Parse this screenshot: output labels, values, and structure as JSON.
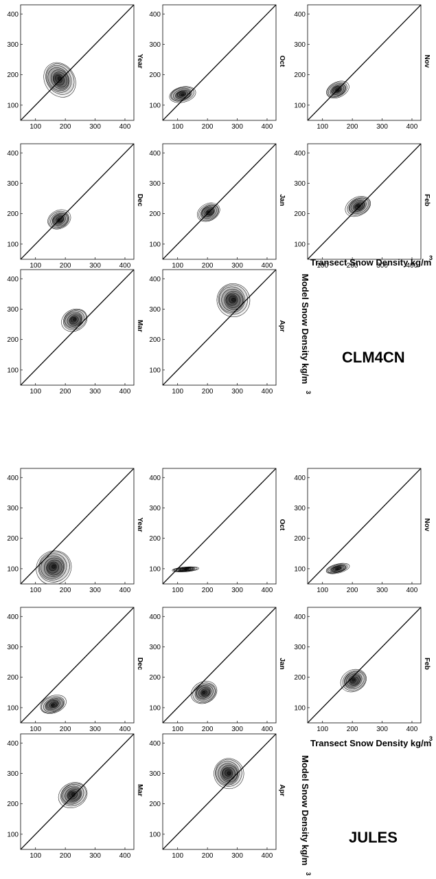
{
  "figure": {
    "x_axis_label": "Transect Snow Density kg/m",
    "x_axis_sup": "3",
    "y_axis_label": "Model Snow Density kg/m",
    "y_axis_sup": "3"
  },
  "chart_data": [
    {
      "type": "contour",
      "model": "CLM4CN",
      "xlabel": "Transect Snow Density kg/m3",
      "ylabel": "Model Snow Density kg/m3",
      "xlim": [
        50,
        430
      ],
      "ylim": [
        50,
        430
      ],
      "xticks": [
        100,
        200,
        300,
        400
      ],
      "yticks": [
        100,
        200,
        300,
        400
      ],
      "reference_line": "1:1",
      "panels": [
        {
          "label": "Year",
          "center": [
            180,
            185
          ],
          "spread": [
            50,
            60
          ],
          "corr": 0.75
        },
        {
          "label": "Oct",
          "center": [
            115,
            135
          ],
          "spread": [
            45,
            25
          ],
          "corr": 0.3
        },
        {
          "label": "Nov",
          "center": [
            150,
            150
          ],
          "spread": [
            40,
            25
          ],
          "corr": 0.55
        },
        {
          "label": "Dec",
          "center": [
            180,
            180
          ],
          "spread": [
            40,
            30
          ],
          "corr": 0.55
        },
        {
          "label": "Jan",
          "center": [
            205,
            205
          ],
          "spread": [
            40,
            28
          ],
          "corr": 0.6
        },
        {
          "label": "Feb",
          "center": [
            220,
            225
          ],
          "spread": [
            45,
            30
          ],
          "corr": 0.6
        },
        {
          "label": "Mar",
          "center": [
            230,
            265
          ],
          "spread": [
            45,
            35
          ],
          "corr": 0.6
        },
        {
          "label": "Apr",
          "center": [
            285,
            330
          ],
          "spread": [
            55,
            55
          ],
          "corr": 0.6
        }
      ]
    },
    {
      "type": "contour",
      "model": "JULES",
      "xlabel": "Transect Snow Density kg/m3",
      "ylabel": "Model Snow Density kg/m3",
      "xlim": [
        50,
        430
      ],
      "ylim": [
        50,
        430
      ],
      "xticks": [
        100,
        200,
        300,
        400
      ],
      "yticks": [
        100,
        200,
        300,
        400
      ],
      "reference_line": "1:1",
      "panels": [
        {
          "label": "Year",
          "center": [
            160,
            105
          ],
          "spread": [
            60,
            55
          ],
          "corr": 0.7
        },
        {
          "label": "Oct",
          "center": [
            125,
            98
          ],
          "spread": [
            45,
            8
          ],
          "corr": 0.1
        },
        {
          "label": "Nov",
          "center": [
            150,
            100
          ],
          "spread": [
            40,
            15
          ],
          "corr": 0.3
        },
        {
          "label": "Dec",
          "center": [
            160,
            110
          ],
          "spread": [
            45,
            28
          ],
          "corr": 0.45
        },
        {
          "label": "Jan",
          "center": [
            190,
            150
          ],
          "spread": [
            45,
            35
          ],
          "corr": 0.55
        },
        {
          "label": "Feb",
          "center": [
            205,
            190
          ],
          "spread": [
            45,
            35
          ],
          "corr": 0.6
        },
        {
          "label": "Mar",
          "center": [
            225,
            230
          ],
          "spread": [
            50,
            40
          ],
          "corr": 0.6
        },
        {
          "label": "Apr",
          "center": [
            270,
            300
          ],
          "spread": [
            50,
            50
          ],
          "corr": 0.6
        }
      ]
    }
  ]
}
